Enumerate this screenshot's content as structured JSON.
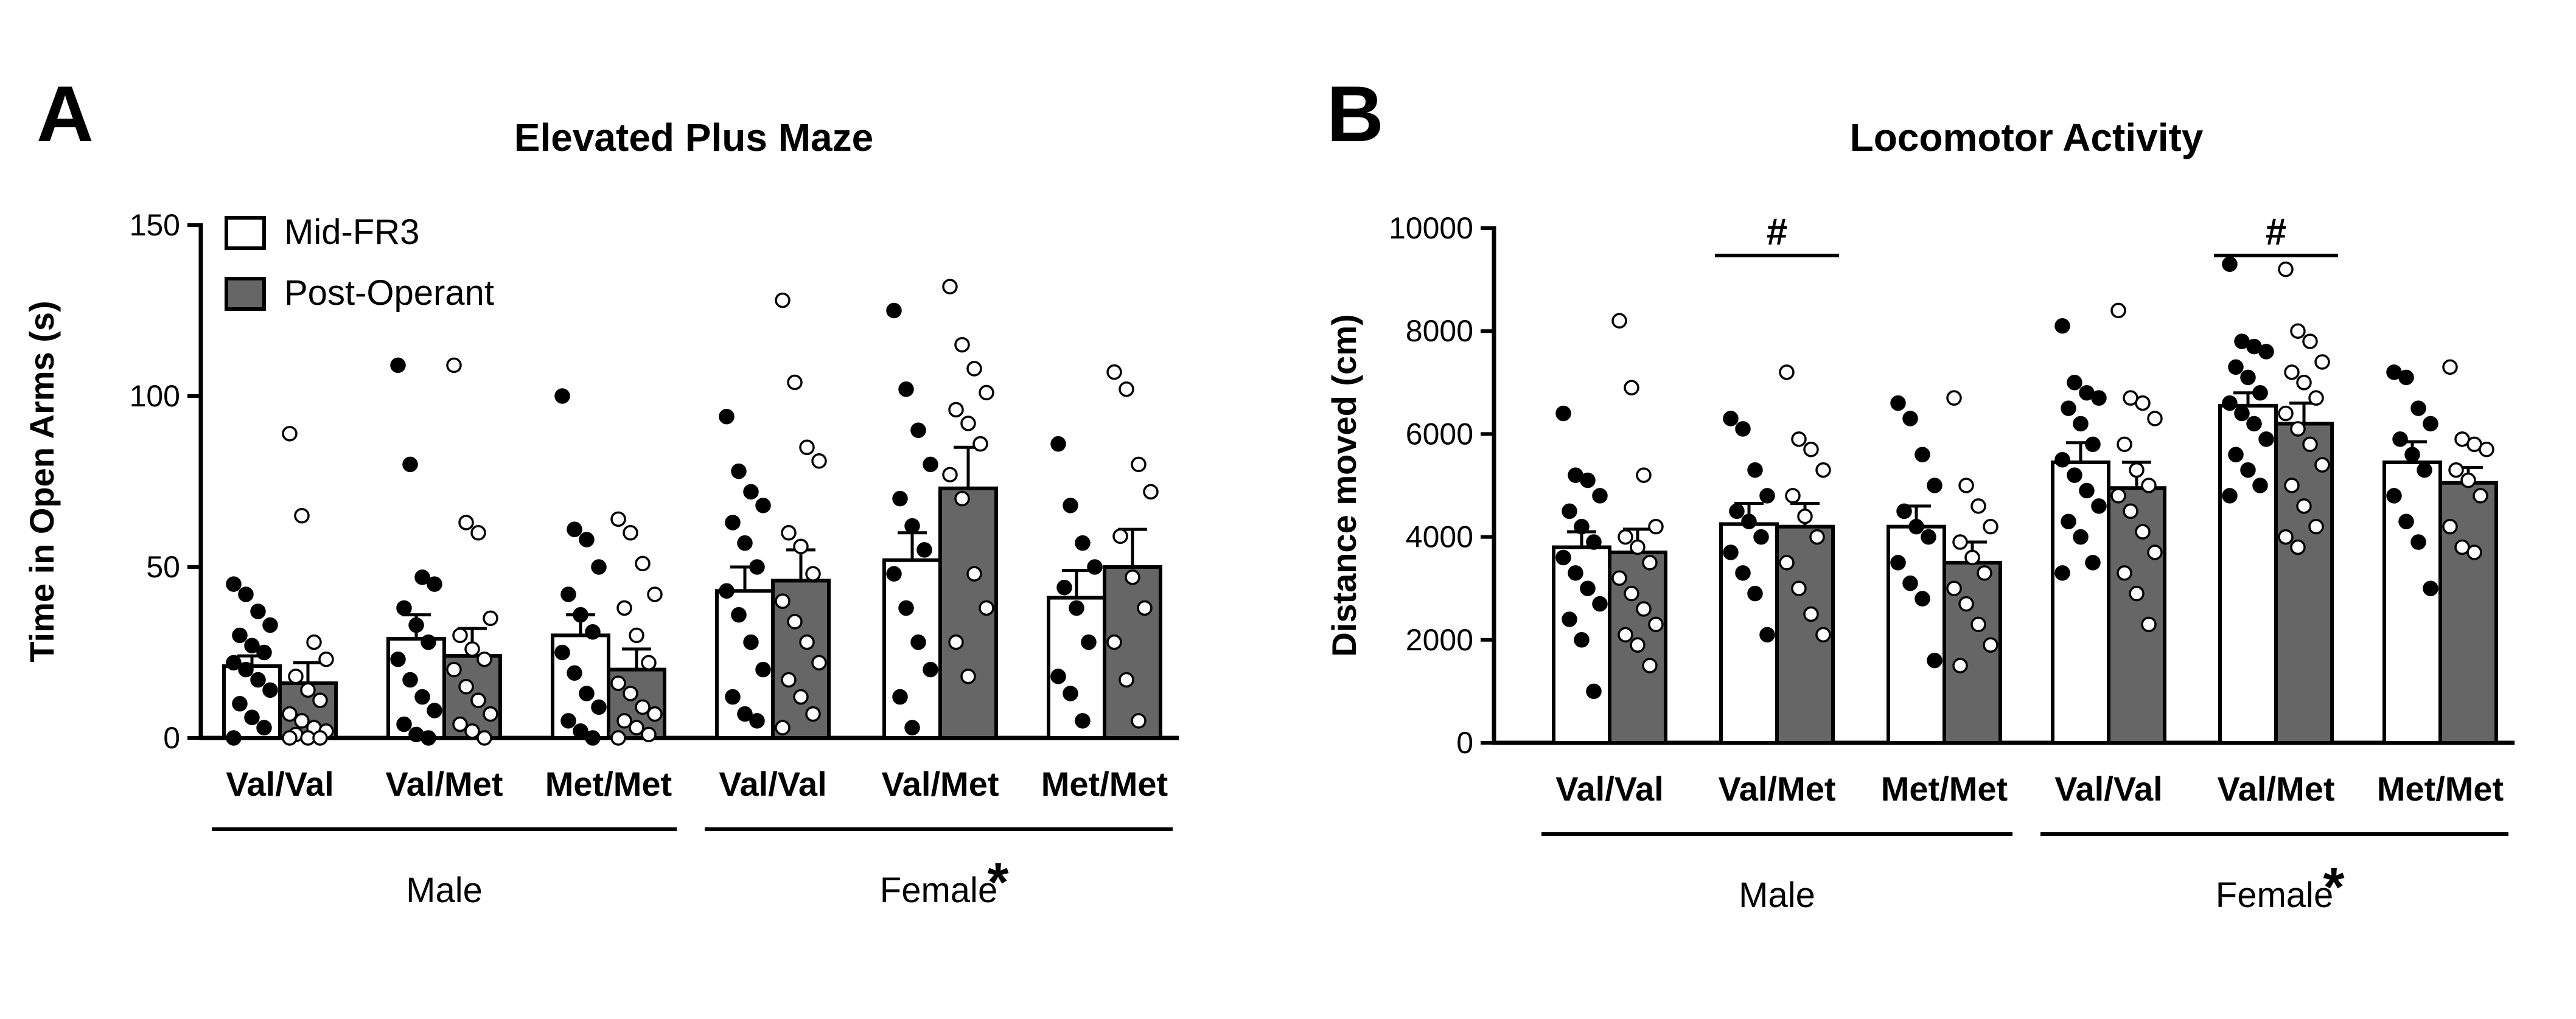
{
  "chart_data": [
    {
      "type": "bar",
      "panel_letter": "A",
      "title": "Elevated Plus Maze",
      "xlabel": "",
      "ylabel": "Time in Open Arms (s)",
      "ylim": [
        0,
        150
      ],
      "yticks": [
        "0",
        "50",
        "100",
        "150"
      ],
      "legend_position": "top-left",
      "categories": [
        "Val/Val",
        "Val/Met",
        "Met/Met",
        "Val/Val",
        "Val/Met",
        "Met/Met"
      ],
      "groups": [
        {
          "label": "Male",
          "star": "",
          "category_indices": [
            0,
            1,
            2
          ]
        },
        {
          "label": "Female",
          "star": "*",
          "category_indices": [
            3,
            4,
            5
          ]
        }
      ],
      "significance": [],
      "series": [
        {
          "name": "Mid-FR3",
          "bar_color": "#ffffff",
          "dot_color": "#000000",
          "values": [
            21,
            29,
            30,
            43,
            52,
            41
          ],
          "errors": [
            3,
            7,
            6,
            7,
            8,
            8
          ],
          "points": [
            [
              45,
              42,
              37,
              33,
              30,
              27,
              25,
              22,
              20,
              17,
              14,
              10,
              6,
              3,
              0
            ],
            [
              109,
              80,
              47,
              45,
              38,
              33,
              28,
              23,
              17,
              12,
              8,
              4,
              1,
              0
            ],
            [
              100,
              61,
              58,
              50,
              42,
              36,
              31,
              25,
              19,
              13,
              9,
              5,
              2,
              0
            ],
            [
              94,
              78,
              72,
              68,
              63,
              57,
              50,
              43,
              36,
              28,
              20,
              12,
              7,
              5
            ],
            [
              125,
              102,
              90,
              80,
              70,
              62,
              55,
              48,
              38,
              28,
              20,
              12,
              3
            ],
            [
              86,
              68,
              57,
              50,
              44,
              38,
              28,
              18,
              13,
              5
            ]
          ]
        },
        {
          "name": "Post-Operant",
          "bar_color": "#666666",
          "dot_color": "#ffffff",
          "values": [
            16,
            24,
            20,
            46,
            73,
            50
          ],
          "errors": [
            6,
            8,
            6,
            9,
            12,
            11
          ],
          "points": [
            [
              89,
              65,
              28,
              23,
              18,
              14,
              11,
              7,
              5,
              3,
              2,
              1,
              0,
              0,
              0
            ],
            [
              109,
              63,
              60,
              35,
              30,
              26,
              23,
              20,
              15,
              11,
              7,
              4,
              2,
              0
            ],
            [
              64,
              60,
              51,
              42,
              38,
              30,
              22,
              16,
              13,
              9,
              7,
              5,
              3,
              1,
              0
            ],
            [
              128,
              104,
              85,
              81,
              60,
              56,
              48,
              40,
              34,
              28,
              22,
              17,
              12,
              7,
              3
            ],
            [
              132,
              115,
              108,
              101,
              96,
              92,
              86,
              77,
              70,
              48,
              38,
              28,
              18
            ],
            [
              107,
              102,
              80,
              72,
              59,
              47,
              38,
              28,
              17,
              5
            ]
          ]
        }
      ]
    },
    {
      "type": "bar",
      "panel_letter": "B",
      "title": "Locomotor Activity",
      "xlabel": "",
      "ylabel": "Distance moved (cm)",
      "ylim": [
        0,
        10000
      ],
      "yticks": [
        "0",
        "2000",
        "4000",
        "6000",
        "8000",
        "10000"
      ],
      "legend_position": "none",
      "categories": [
        "Val/Val",
        "Val/Met",
        "Met/Met",
        "Val/Val",
        "Val/Met",
        "Met/Met"
      ],
      "groups": [
        {
          "label": "Male",
          "star": "",
          "category_indices": [
            0,
            1,
            2
          ]
        },
        {
          "label": "Female",
          "star": "*",
          "category_indices": [
            3,
            4,
            5
          ]
        }
      ],
      "significance": [
        {
          "label": "#",
          "category_index": 1
        },
        {
          "label": "#",
          "category_index": 4
        }
      ],
      "series": [
        {
          "name": "Mid-FR3",
          "bar_color": "#ffffff",
          "dot_color": "#000000",
          "values": [
            3800,
            4250,
            4200,
            5450,
            6550,
            5450
          ],
          "errors": [
            300,
            400,
            400,
            380,
            250,
            400
          ],
          "points": [
            [
              6400,
              5200,
              5100,
              4800,
              4500,
              4200,
              3900,
              3600,
              3300,
              3000,
              2700,
              2400,
              2000,
              1000
            ],
            [
              6300,
              6100,
              5300,
              4800,
              4500,
              4300,
              4000,
              3700,
              3300,
              2900,
              2100
            ],
            [
              6600,
              6300,
              5600,
              5000,
              4500,
              4200,
              4000,
              3500,
              3100,
              2800,
              1600
            ],
            [
              8100,
              7000,
              6800,
              6700,
              6500,
              6200,
              5800,
              5500,
              5200,
              4900,
              4600,
              4300,
              4000,
              3500,
              3300
            ],
            [
              9300,
              7800,
              7700,
              7600,
              7300,
              7100,
              6800,
              6600,
              6400,
              6200,
              5900,
              5600,
              5300,
              5000,
              4800
            ],
            [
              7200,
              7100,
              6500,
              6200,
              5900,
              5600,
              5300,
              4800,
              4300,
              3900,
              3000
            ]
          ]
        },
        {
          "name": "Post-Operant",
          "bar_color": "#666666",
          "dot_color": "#ffffff",
          "values": [
            3700,
            4200,
            3500,
            4950,
            6200,
            5050
          ],
          "errors": [
            450,
            450,
            400,
            500,
            400,
            300
          ],
          "points": [
            [
              8200,
              6900,
              5200,
              4200,
              4000,
              3800,
              3500,
              3200,
              2900,
              2600,
              2300,
              2100,
              1900,
              1500
            ],
            [
              7200,
              5900,
              5700,
              5300,
              4800,
              4400,
              4000,
              3500,
              3000,
              2500,
              2100
            ],
            [
              6700,
              5000,
              4600,
              4200,
              3900,
              3600,
              3300,
              3000,
              2700,
              2300,
              1900,
              1500
            ],
            [
              8400,
              6700,
              6600,
              6300,
              5800,
              5300,
              5000,
              4800,
              4500,
              4100,
              3700,
              3300,
              2900,
              2300
            ],
            [
              9200,
              8000,
              7800,
              7400,
              7200,
              7000,
              6700,
              6400,
              6100,
              5800,
              5400,
              5000,
              4600,
              4200,
              4000,
              3800
            ],
            [
              7300,
              5900,
              5800,
              5700,
              5300,
              5100,
              4800,
              4200,
              3800,
              3700
            ]
          ]
        }
      ]
    }
  ]
}
